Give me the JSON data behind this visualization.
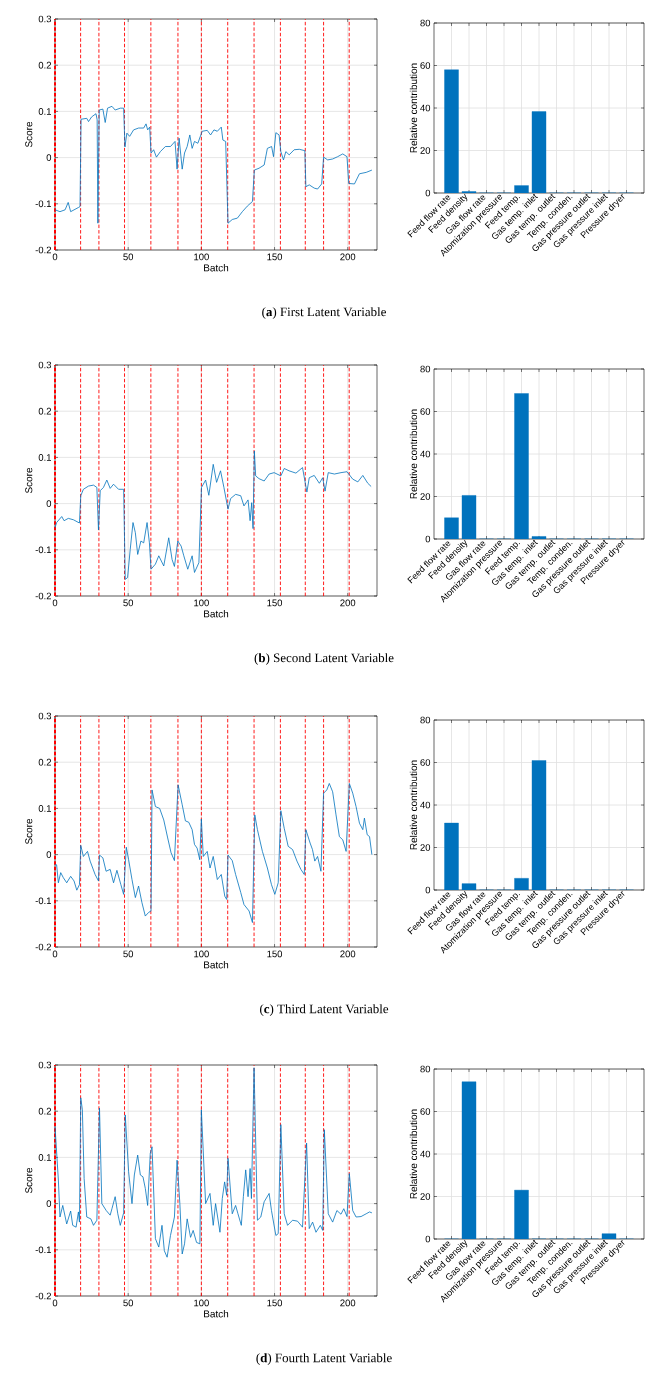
{
  "chart_data": [
    {
      "type": "line",
      "title": "(**a**) First Latent Variable",
      "xlabel": "Batch",
      "ylabel": "Score",
      "color": "#0072bd",
      "x": [
        0,
        3.4,
        6.9,
        9,
        10.7,
        16,
        17.1,
        17.8,
        21.7,
        22.9,
        25,
        28,
        28.8,
        29.3,
        30.2,
        32.7,
        34.3,
        35.9,
        38.9,
        41.1,
        44.6,
        46.9,
        47.8,
        49.1,
        51,
        53.7,
        57.1,
        60.6,
        62.2,
        63.3,
        64.7,
        65.6,
        67.4,
        69.3,
        72,
        75.4,
        78.9,
        82,
        83.4,
        84.8,
        86.9,
        88.5,
        90.3,
        92.1,
        93.7,
        95.3,
        97.6,
        99.4,
        100.6,
        104,
        106.3,
        108.6,
        110.9,
        113.6,
        114.7,
        116.6,
        118.2,
        121.1,
        124.6,
        128,
        131.4,
        134.9,
        136.2,
        139.4,
        142.9,
        145.1,
        148,
        149.3,
        150.9,
        153.1,
        154.3,
        156.1,
        157.7,
        160,
        163.4,
        166.9,
        170.7,
        171.4,
        173.7,
        177.1,
        179.4,
        182.2,
        183.5,
        186.3,
        189.7,
        193.1,
        196.6,
        199.5,
        200.7,
        204.6,
        208,
        212.6,
        216.5
      ],
      "values": [
        -0.113,
        -0.117,
        -0.113,
        -0.097,
        -0.117,
        -0.108,
        -0.106,
        0.083,
        0.085,
        0.078,
        0.088,
        0.095,
        0.082,
        -0.142,
        0.103,
        0.105,
        0.076,
        0.107,
        0.111,
        0.103,
        0.107,
        0.107,
        0.023,
        0.053,
        0.046,
        0.06,
        0.064,
        0.064,
        0.073,
        0.06,
        0.066,
        0.01,
        0.017,
        0.001,
        0.013,
        0.024,
        0.024,
        0.035,
        -0.025,
        0.042,
        -0.025,
        0.01,
        0.024,
        0.049,
        0.02,
        0.035,
        0.031,
        0.047,
        0.057,
        0.059,
        0.049,
        0.06,
        0.057,
        0.066,
        0.038,
        0.035,
        -0.142,
        -0.134,
        -0.131,
        -0.117,
        -0.105,
        -0.095,
        -0.027,
        -0.023,
        -0.016,
        0.02,
        0.024,
        0.002,
        0.054,
        0.049,
        0.013,
        -0.005,
        0.013,
        0.006,
        0.017,
        0.018,
        0.015,
        -0.063,
        -0.059,
        -0.066,
        -0.068,
        -0.057,
        0.001,
        -0.005,
        -0.003,
        0.002,
        0.008,
        0.002,
        -0.056,
        -0.057,
        -0.035,
        -0.032,
        -0.027
      ],
      "xlim": [
        0,
        220
      ],
      "xticks": [
        0,
        50,
        100,
        150,
        200
      ],
      "ylim": [
        -0.2,
        0.3
      ],
      "yticks": [
        -0.2,
        -0.1,
        0,
        0.1,
        0.2,
        0.3
      ],
      "grid": true,
      "ref_lines": [
        {
          "axis": "x",
          "value": 0,
          "color": "#ff0000",
          "line_style": "dashed"
        },
        {
          "axis": "x",
          "value": 17.5,
          "color": "#ff0000",
          "line_style": "dashed"
        },
        {
          "axis": "x",
          "value": 30,
          "color": "#ff0000",
          "line_style": "dashed"
        },
        {
          "axis": "x",
          "value": 47.5,
          "color": "#ff0000",
          "line_style": "dashed"
        },
        {
          "axis": "x",
          "value": 65.5,
          "color": "#ff0000",
          "line_style": "dashed"
        },
        {
          "axis": "x",
          "value": 84,
          "color": "#ff0000",
          "line_style": "dashed"
        },
        {
          "axis": "x",
          "value": 100,
          "color": "#ff0000",
          "line_style": "dashed"
        },
        {
          "axis": "x",
          "value": 118,
          "color": "#ff0000",
          "line_style": "dashed"
        },
        {
          "axis": "x",
          "value": 136,
          "color": "#ff0000",
          "line_style": "dashed"
        },
        {
          "axis": "x",
          "value": 154,
          "color": "#ff0000",
          "line_style": "dashed"
        },
        {
          "axis": "x",
          "value": 171,
          "color": "#ff0000",
          "line_style": "dashed"
        },
        {
          "axis": "x",
          "value": 183.5,
          "color": "#ff0000",
          "line_style": "dashed"
        },
        {
          "axis": "x",
          "value": 201,
          "color": "#ff0000",
          "line_style": "dashed"
        }
      ]
    },
    {
      "type": "bar",
      "ylabel": "Relative contribution",
      "color": "#0072bd",
      "categories": [
        "Feed flow rate",
        "Feed density",
        "Gas flow rate",
        "Atomization pressure",
        "Feed temp.",
        "Gas temp. inlet",
        "Gas temp. outlet",
        "Temp. conden.",
        "Gas pressure outlet",
        "Gas pressure inlet",
        "Pressure dryer"
      ],
      "values": [
        58,
        0.7,
        0,
        0,
        3.5,
        38.3,
        0,
        0,
        0,
        0,
        0
      ],
      "ylim": [
        0,
        80
      ],
      "yticks": [
        0,
        20,
        40,
        60,
        80
      ],
      "grid": true
    },
    {
      "type": "line",
      "title": "(**b**) Second Latent Variable",
      "xlabel": "Batch",
      "ylabel": "Score",
      "color": "#0072bd",
      "x": [
        0,
        1.1,
        4.6,
        6.2,
        9.1,
        12.6,
        16.7,
        17.6,
        19.4,
        22.9,
        26.3,
        28.6,
        29.7,
        30.9,
        33.1,
        35.4,
        37.7,
        40,
        43.4,
        46.9,
        48,
        49.6,
        51.4,
        53.3,
        54.9,
        56.5,
        58.7,
        60.6,
        62.9,
        64.5,
        65.6,
        68.6,
        70.9,
        74.3,
        77.7,
        80,
        81.6,
        83.9,
        86.2,
        88,
        90.7,
        93.7,
        95.3,
        98.3,
        100.1,
        102.9,
        105.1,
        108.1,
        110.4,
        113.1,
        115.4,
        118.2,
        120,
        123.4,
        126.9,
        129.1,
        131.9,
        133.3,
        134.4,
        135.3,
        136.2,
        137.1,
        139.4,
        142.9,
        146.3,
        149.7,
        154.3,
        156.6,
        159.9,
        164.6,
        169.1,
        172.1,
        173.7,
        177.1,
        180.6,
        182.9,
        184.5,
        186.7,
        190.9,
        195.4,
        199.5,
        203.4,
        206.9,
        210.3,
        213.7,
        216
      ],
      "values": [
        -0.052,
        -0.041,
        -0.028,
        -0.037,
        -0.032,
        -0.035,
        -0.042,
        0.017,
        0.031,
        0.038,
        0.04,
        0.035,
        -0.057,
        0.028,
        0.035,
        0.051,
        0.033,
        0.042,
        0.031,
        0.031,
        -0.164,
        -0.16,
        -0.099,
        -0.041,
        -0.063,
        -0.11,
        -0.081,
        -0.085,
        -0.041,
        -0.085,
        -0.142,
        -0.131,
        -0.113,
        -0.135,
        -0.074,
        -0.121,
        -0.136,
        -0.081,
        -0.092,
        -0.113,
        -0.142,
        -0.113,
        -0.149,
        -0.128,
        0.035,
        0.051,
        0.018,
        0.085,
        0.046,
        0.071,
        0.035,
        -0.012,
        0.011,
        0.02,
        0.017,
        -0.005,
        0.008,
        -0.037,
        0.002,
        -0.054,
        0.114,
        0.06,
        0.054,
        0.049,
        0.064,
        0.067,
        0.06,
        0.076,
        0.071,
        0.066,
        0.078,
        0.025,
        0.056,
        0.061,
        0.044,
        0.056,
        0.027,
        0.067,
        0.064,
        0.067,
        0.069,
        0.053,
        0.047,
        0.061,
        0.044,
        0.037
      ],
      "xlim": [
        0,
        220
      ],
      "xticks": [
        0,
        50,
        100,
        150,
        200
      ],
      "ylim": [
        -0.2,
        0.3
      ],
      "yticks": [
        -0.2,
        -0.1,
        0,
        0.1,
        0.2,
        0.3
      ],
      "grid": true,
      "ref_lines": [
        {
          "axis": "x",
          "value": 0,
          "color": "#ff0000",
          "line_style": "dashed"
        },
        {
          "axis": "x",
          "value": 17.5,
          "color": "#ff0000",
          "line_style": "dashed"
        },
        {
          "axis": "x",
          "value": 30,
          "color": "#ff0000",
          "line_style": "dashed"
        },
        {
          "axis": "x",
          "value": 47.5,
          "color": "#ff0000",
          "line_style": "dashed"
        },
        {
          "axis": "x",
          "value": 65.5,
          "color": "#ff0000",
          "line_style": "dashed"
        },
        {
          "axis": "x",
          "value": 84,
          "color": "#ff0000",
          "line_style": "dashed"
        },
        {
          "axis": "x",
          "value": 100,
          "color": "#ff0000",
          "line_style": "dashed"
        },
        {
          "axis": "x",
          "value": 118,
          "color": "#ff0000",
          "line_style": "dashed"
        },
        {
          "axis": "x",
          "value": 136,
          "color": "#ff0000",
          "line_style": "dashed"
        },
        {
          "axis": "x",
          "value": 154,
          "color": "#ff0000",
          "line_style": "dashed"
        },
        {
          "axis": "x",
          "value": 171,
          "color": "#ff0000",
          "line_style": "dashed"
        },
        {
          "axis": "x",
          "value": 183.5,
          "color": "#ff0000",
          "line_style": "dashed"
        },
        {
          "axis": "x",
          "value": 201,
          "color": "#ff0000",
          "line_style": "dashed"
        }
      ]
    },
    {
      "type": "bar",
      "ylabel": "Relative contribution",
      "color": "#0072bd",
      "categories": [
        "Feed flow rate",
        "Feed density",
        "Gas flow rate",
        "Atomization pressure",
        "Feed temp.",
        "Gas temp. inlet",
        "Gas temp. outlet",
        "Temp. conden.",
        "Gas pressure outlet",
        "Gas pressure inlet",
        "Pressure dryer"
      ],
      "values": [
        10,
        20.5,
        0,
        0,
        68.5,
        1.2,
        0,
        0,
        0,
        0,
        0
      ],
      "ylim": [
        0,
        80
      ],
      "yticks": [
        0,
        20,
        40,
        60,
        80
      ],
      "grid": true
    },
    {
      "type": "line",
      "title": "(**c**) Third Latent Variable",
      "xlabel": "Batch",
      "ylabel": "Score",
      "color": "#0072bd",
      "x": [
        0,
        1.1,
        2.3,
        3.9,
        5.7,
        8,
        10.7,
        13,
        14.9,
        16.7,
        17.6,
        19.4,
        22.2,
        24,
        27.4,
        29.7,
        30.4,
        32.7,
        34.9,
        37.7,
        40,
        42.3,
        45,
        46.9,
        48.7,
        50.3,
        52.6,
        54.9,
        57.1,
        59.4,
        61.7,
        64,
        65.6,
        66.3,
        68.6,
        71.5,
        74.3,
        77,
        79.3,
        81.6,
        84.1,
        86.9,
        89.1,
        91.4,
        93.7,
        95.3,
        97.1,
        98.9,
        100,
        101.3,
        104,
        105.9,
        108.1,
        110.9,
        113.6,
        116,
        117.3,
        118.2,
        121.1,
        123.4,
        126.9,
        129.1,
        132.6,
        134.9,
        136.5,
        138.3,
        141.7,
        145.1,
        147.9,
        150.2,
        152.5,
        154.3,
        156.6,
        159.3,
        162.3,
        165.3,
        168,
        170.3,
        171.4,
        174.3,
        175.9,
        177.5,
        179.4,
        181.7,
        183.5,
        185.7,
        187.4,
        189.7,
        192,
        194.3,
        196.6,
        198.9,
        201.1,
        203.4,
        205.7,
        208,
        210.3,
        211.4,
        213.3,
        214.9,
        216.5
      ],
      "values": [
        -0.022,
        -0.022,
        -0.061,
        -0.039,
        -0.05,
        -0.061,
        -0.047,
        -0.057,
        -0.077,
        -0.065,
        0.02,
        -0.004,
        0.007,
        -0.014,
        -0.043,
        -0.057,
        -0.001,
        -0.007,
        -0.036,
        -0.032,
        -0.061,
        -0.034,
        -0.065,
        -0.086,
        0.016,
        -0.011,
        -0.054,
        -0.093,
        -0.068,
        -0.104,
        -0.133,
        -0.125,
        -0.122,
        0.14,
        0.104,
        0.1,
        0.075,
        0.036,
        0.004,
        -0.013,
        0.151,
        0.108,
        0.073,
        0.07,
        0.054,
        0.022,
        0.014,
        -0.011,
        0.077,
        -0.004,
        0.007,
        -0.029,
        -0.004,
        -0.054,
        -0.043,
        -0.09,
        -0.097,
        -0.001,
        -0.013,
        -0.043,
        -0.082,
        -0.108,
        -0.122,
        -0.147,
        0.086,
        0.054,
        0.007,
        -0.029,
        -0.065,
        -0.086,
        -0.061,
        0.095,
        0.057,
        0.018,
        0.011,
        -0.014,
        -0.032,
        -0.043,
        0.054,
        0.025,
        0.011,
        -0.014,
        -0.004,
        -0.036,
        0.133,
        0.14,
        0.154,
        0.136,
        0.086,
        0.039,
        0.032,
        0.007,
        0.154,
        0.133,
        0.104,
        0.068,
        0.054,
        0.079,
        0.043,
        0.039,
        0
      ],
      "xlim": [
        0,
        220
      ],
      "xticks": [
        0,
        50,
        100,
        150,
        200
      ],
      "ylim": [
        -0.2,
        0.3
      ],
      "yticks": [
        -0.2,
        -0.1,
        0,
        0.1,
        0.2,
        0.3
      ],
      "grid": true,
      "ref_lines": [
        {
          "axis": "x",
          "value": 0,
          "color": "#ff0000",
          "line_style": "dashed"
        },
        {
          "axis": "x",
          "value": 17.5,
          "color": "#ff0000",
          "line_style": "dashed"
        },
        {
          "axis": "x",
          "value": 30,
          "color": "#ff0000",
          "line_style": "dashed"
        },
        {
          "axis": "x",
          "value": 47.5,
          "color": "#ff0000",
          "line_style": "dashed"
        },
        {
          "axis": "x",
          "value": 65.5,
          "color": "#ff0000",
          "line_style": "dashed"
        },
        {
          "axis": "x",
          "value": 84,
          "color": "#ff0000",
          "line_style": "dashed"
        },
        {
          "axis": "x",
          "value": 100,
          "color": "#ff0000",
          "line_style": "dashed"
        },
        {
          "axis": "x",
          "value": 118,
          "color": "#ff0000",
          "line_style": "dashed"
        },
        {
          "axis": "x",
          "value": 136,
          "color": "#ff0000",
          "line_style": "dashed"
        },
        {
          "axis": "x",
          "value": 154,
          "color": "#ff0000",
          "line_style": "dashed"
        },
        {
          "axis": "x",
          "value": 171,
          "color": "#ff0000",
          "line_style": "dashed"
        },
        {
          "axis": "x",
          "value": 183.5,
          "color": "#ff0000",
          "line_style": "dashed"
        },
        {
          "axis": "x",
          "value": 201,
          "color": "#ff0000",
          "line_style": "dashed"
        }
      ]
    },
    {
      "type": "bar",
      "ylabel": "Relative contribution",
      "color": "#0072bd",
      "categories": [
        "Feed flow rate",
        "Feed density",
        "Gas flow rate",
        "Atomization pressure",
        "Feed temp.",
        "Gas temp. inlet",
        "Gas temp. outlet",
        "Temp. conden.",
        "Gas pressure outlet",
        "Gas pressure inlet",
        "Pressure dryer"
      ],
      "values": [
        31.5,
        3,
        0,
        0,
        5.5,
        61,
        0,
        0,
        0,
        0,
        0
      ],
      "ylim": [
        0,
        80
      ],
      "yticks": [
        0,
        20,
        40,
        60,
        80
      ],
      "grid": true
    },
    {
      "type": "line",
      "title": "(**d**) Fourth Latent Variable",
      "xlabel": "Batch",
      "ylabel": "Score",
      "color": "#0072bd",
      "x": [
        0,
        2.3,
        3.4,
        5.3,
        8,
        10.7,
        12.1,
        14.4,
        16,
        16.7,
        17.6,
        18.7,
        19.9,
        21.7,
        24.5,
        26.3,
        28.6,
        30.4,
        32,
        35,
        37.7,
        38.9,
        41.1,
        42.9,
        44.6,
        46.9,
        48,
        50.3,
        52.6,
        54.2,
        56.5,
        58.3,
        60.1,
        61.7,
        63.3,
        65.1,
        66.3,
        68.6,
        70.9,
        73.1,
        74.7,
        76.6,
        78.9,
        81.6,
        83.4,
        85.3,
        86.9,
        88.5,
        90.3,
        92.6,
        94.4,
        96.7,
        99,
        100,
        102.9,
        105.9,
        108.1,
        109.7,
        112.7,
        114.3,
        115.9,
        117.3,
        118.2,
        121.1,
        123.4,
        125,
        127.3,
        128.7,
        130.3,
        131.9,
        133.3,
        134.2,
        136,
        138.3,
        140.6,
        142.9,
        146.3,
        147.9,
        150.9,
        152.5,
        154.3,
        156.6,
        158.9,
        162.3,
        165.7,
        169.1,
        171.9,
        173.7,
        176,
        178.3,
        181.3,
        182.9,
        184,
        186.7,
        189.7,
        192.6,
        195.4,
        197.3,
        199.5,
        201.1,
        203.4,
        205.7,
        209.1,
        212.6,
        214.9,
        216.5
      ],
      "values": [
        0.167,
        0.051,
        -0.029,
        -0.004,
        -0.044,
        -0.016,
        -0.047,
        -0.051,
        -0.018,
        -0.04,
        0.229,
        0.203,
        0.054,
        -0.029,
        -0.033,
        -0.047,
        -0.036,
        0.207,
        0,
        -0.015,
        -0.025,
        -0.011,
        0.015,
        -0.022,
        -0.047,
        -0.02,
        0.192,
        0.069,
        0,
        0.062,
        0.105,
        0.062,
        0.058,
        0.033,
        -0.004,
        0.109,
        0.123,
        -0.076,
        -0.094,
        -0.047,
        -0.102,
        -0.116,
        -0.069,
        -0.029,
        0.094,
        0,
        -0.109,
        -0.087,
        -0.033,
        -0.073,
        -0.058,
        -0.084,
        -0.087,
        0.203,
        0,
        0.022,
        -0.047,
        0,
        -0.062,
        0.011,
        0.047,
        0.018,
        0.098,
        -0.022,
        -0.004,
        -0.022,
        -0.047,
        0.015,
        0.073,
        0.015,
        0.076,
        0.011,
        0.294,
        -0.036,
        -0.029,
        0.004,
        0.022,
        -0.015,
        -0.069,
        -0.065,
        0.171,
        -0.022,
        -0.047,
        -0.036,
        -0.038,
        -0.051,
        0.131,
        -0.054,
        -0.04,
        -0.062,
        -0.047,
        -0.058,
        0.16,
        -0.022,
        -0.04,
        -0.015,
        -0.023,
        -0.011,
        -0.028,
        0.065,
        -0.015,
        -0.029,
        -0.028,
        -0.022,
        -0.018,
        -0.02
      ],
      "xlim": [
        0,
        220
      ],
      "xticks": [
        0,
        50,
        100,
        150,
        200
      ],
      "ylim": [
        -0.2,
        0.3
      ],
      "yticks": [
        -0.2,
        -0.1,
        0,
        0.1,
        0.2,
        0.3
      ],
      "grid": true,
      "ref_lines": [
        {
          "axis": "x",
          "value": 0,
          "color": "#ff0000",
          "line_style": "dashed"
        },
        {
          "axis": "x",
          "value": 17.5,
          "color": "#ff0000",
          "line_style": "dashed"
        },
        {
          "axis": "x",
          "value": 30,
          "color": "#ff0000",
          "line_style": "dashed"
        },
        {
          "axis": "x",
          "value": 47.5,
          "color": "#ff0000",
          "line_style": "dashed"
        },
        {
          "axis": "x",
          "value": 65.5,
          "color": "#ff0000",
          "line_style": "dashed"
        },
        {
          "axis": "x",
          "value": 84,
          "color": "#ff0000",
          "line_style": "dashed"
        },
        {
          "axis": "x",
          "value": 100,
          "color": "#ff0000",
          "line_style": "dashed"
        },
        {
          "axis": "x",
          "value": 118,
          "color": "#ff0000",
          "line_style": "dashed"
        },
        {
          "axis": "x",
          "value": 136,
          "color": "#ff0000",
          "line_style": "dashed"
        },
        {
          "axis": "x",
          "value": 154,
          "color": "#ff0000",
          "line_style": "dashed"
        },
        {
          "axis": "x",
          "value": 171,
          "color": "#ff0000",
          "line_style": "dashed"
        },
        {
          "axis": "x",
          "value": 183.5,
          "color": "#ff0000",
          "line_style": "dashed"
        },
        {
          "axis": "x",
          "value": 201,
          "color": "#ff0000",
          "line_style": "dashed"
        }
      ]
    },
    {
      "type": "bar",
      "ylabel": "Relative contribution",
      "color": "#0072bd",
      "categories": [
        "Feed flow rate",
        "Feed density",
        "Gas flow rate",
        "Atomization pressure",
        "Feed temp.",
        "Gas temp. inlet",
        "Gas temp. outlet",
        "Temp. conden.",
        "Gas pressure outlet",
        "Gas pressure inlet",
        "Pressure dryer"
      ],
      "values": [
        0,
        74,
        0,
        0,
        23,
        0,
        0,
        0,
        0,
        2.5,
        0
      ],
      "ylim": [
        0,
        80
      ],
      "yticks": [
        0,
        20,
        40,
        60,
        80
      ],
      "grid": true
    }
  ]
}
